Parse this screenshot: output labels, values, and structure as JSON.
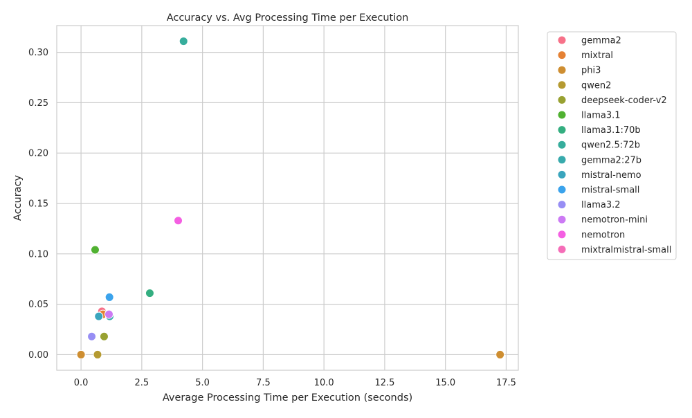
{
  "chart_data": {
    "type": "scatter",
    "title": "Accuracy vs. Avg Processing Time per Execution",
    "xlabel": "Average Processing Time per Execution (seconds)",
    "ylabel": "Accuracy",
    "xlim": [
      -1.0,
      18.0
    ],
    "ylim": [
      -0.0155,
      0.3265
    ],
    "xticks": [
      0.0,
      2.5,
      5.0,
      7.5,
      10.0,
      12.5,
      15.0,
      17.5
    ],
    "xtick_labels": [
      "0.0",
      "2.5",
      "5.0",
      "7.5",
      "10.0",
      "12.5",
      "15.0",
      "17.5"
    ],
    "yticks": [
      0.0,
      0.05,
      0.1,
      0.15,
      0.2,
      0.25,
      0.3
    ],
    "ytick_labels": [
      "0.00",
      "0.05",
      "0.10",
      "0.15",
      "0.20",
      "0.25",
      "0.30"
    ],
    "grid": true,
    "legend_position": "outside-right",
    "series": [
      {
        "name": "gemma2",
        "color": "#f77189",
        "points": [
          [
            0.86,
            0.043
          ]
        ]
      },
      {
        "name": "mixtral",
        "color": "#e58134",
        "points": [
          [
            0.9,
            0.04
          ]
        ]
      },
      {
        "name": "phi3",
        "color": "#ce8e31",
        "points": [
          [
            0.0,
            0.0
          ],
          [
            17.25,
            0.0
          ]
        ]
      },
      {
        "name": "qwen2",
        "color": "#b59a31",
        "points": [
          [
            0.68,
            0.0
          ]
        ]
      },
      {
        "name": "deepseek-coder-v2",
        "color": "#98a131",
        "points": [
          [
            0.95,
            0.018
          ]
        ]
      },
      {
        "name": "llama3.1",
        "color": "#50b131",
        "points": [
          [
            0.58,
            0.104
          ]
        ]
      },
      {
        "name": "llama3.1:70b",
        "color": "#34ae80",
        "points": [
          [
            2.83,
            0.061
          ]
        ]
      },
      {
        "name": "qwen2.5:72b",
        "color": "#36ad9c",
        "points": [
          [
            4.22,
            0.311
          ]
        ]
      },
      {
        "name": "gemma2:27b",
        "color": "#38aaac",
        "points": [
          [
            1.18,
            0.038
          ]
        ]
      },
      {
        "name": "mistral-nemo",
        "color": "#3aa5bd",
        "points": [
          [
            0.73,
            0.038
          ]
        ]
      },
      {
        "name": "mistral-small",
        "color": "#3ba3ec",
        "points": [
          [
            1.17,
            0.057
          ]
        ]
      },
      {
        "name": "llama3.2",
        "color": "#978ef4",
        "points": [
          [
            0.44,
            0.018
          ]
        ]
      },
      {
        "name": "nemotron-mini",
        "color": "#cc7af4",
        "points": [
          [
            1.15,
            0.04
          ]
        ]
      },
      {
        "name": "nemotron",
        "color": "#f45fe2",
        "points": [
          [
            4.0,
            0.133
          ]
        ]
      },
      {
        "name": "mixtralmistral-small",
        "color": "#f56db8",
        "points": []
      }
    ]
  }
}
